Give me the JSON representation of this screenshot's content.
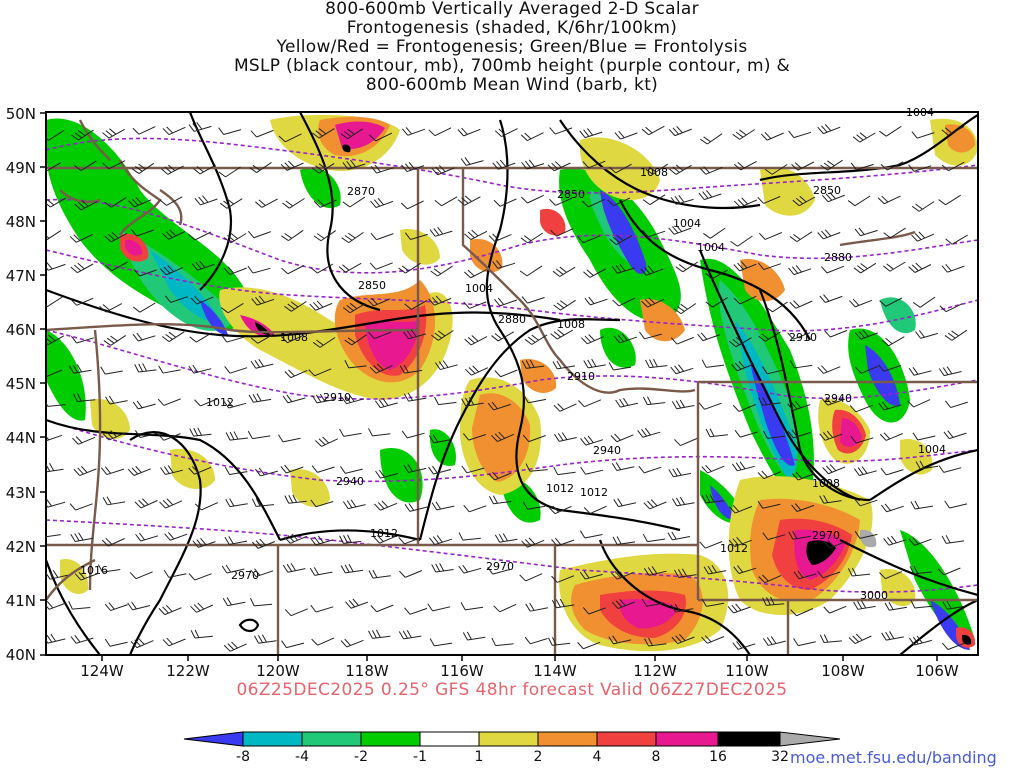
{
  "title": {
    "lines": [
      "800-600mb Vertically Averaged 2-D Scalar",
      "Frontogenesis (shaded, K/6hr/100km)",
      "Yellow/Red = Frontogenesis;  Green/Blue = Frontolysis",
      "MSLP (black contour, mb), 700mb height (purple contour, m) &",
      "800-600mb Mean Wind (barb, kt)"
    ]
  },
  "valid_line": "06Z25DEC2025 0.25° GFS 48hr forecast Valid 06Z27DEC2025",
  "credit": "moe.met.fsu.edu/banding",
  "map": {
    "lat_labels": [
      "50N",
      "49N",
      "48N",
      "47N",
      "46N",
      "45N",
      "44N",
      "43N",
      "42N",
      "41N",
      "40N"
    ],
    "lon_labels": [
      "124W",
      "122W",
      "120W",
      "118W",
      "116W",
      "114W",
      "112W",
      "110W",
      "108W",
      "106W"
    ],
    "mslp_labels": [
      "1008",
      "1004",
      "1004",
      "1004",
      "1004",
      "1008",
      "1012",
      "1012",
      "1012",
      "1012",
      "1008",
      "1004",
      "1012",
      "1016",
      "1008"
    ],
    "height_labels": [
      "2870",
      "2850",
      "2850",
      "2880",
      "2850",
      "2880",
      "2910",
      "2910",
      "2940",
      "2910",
      "2940",
      "2940",
      "2970",
      "2970",
      "3000",
      "2970"
    ]
  },
  "colorbar": {
    "labels": [
      "-8",
      "-4",
      "-2",
      "-1",
      "1",
      "2",
      "4",
      "8",
      "16",
      "32"
    ],
    "colors": [
      "#3a3af0",
      "#00b8c4",
      "#20c878",
      "#00cc00",
      "#ffffff",
      "#e0d840",
      "#f09030",
      "#f04040",
      "#e81890",
      "#000000",
      "#aaaaaa"
    ]
  },
  "colors": {
    "mslp": "#000000",
    "height": "#9a22cc",
    "borders": "#7a5a4a",
    "valid_text": "#e8636b",
    "credit_text": "#4a5bd8"
  }
}
